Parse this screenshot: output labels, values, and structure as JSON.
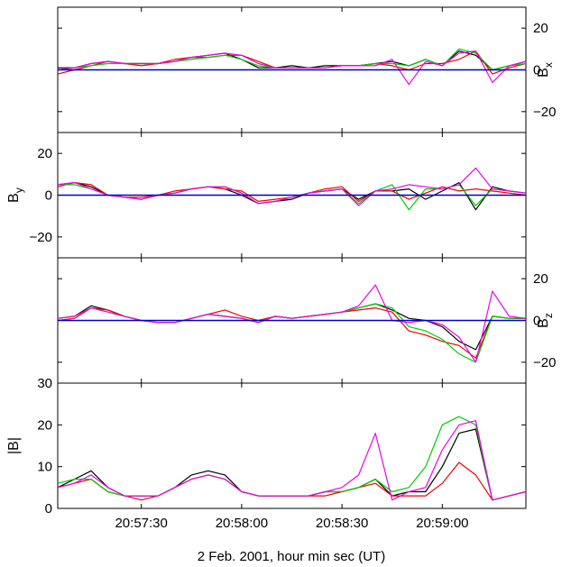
{
  "figure": {
    "xlabel": "2 Feb. 2001, hour min sec (UT)"
  },
  "chart_data": [
    {
      "type": "line",
      "panel": "Bx",
      "ylabel": "B",
      "ylabel_sub": "x",
      "ylabel_side": "right",
      "ylim": [
        -30,
        30
      ],
      "yticks": [
        -20,
        0,
        20
      ],
      "ytick_labels": [
        "−20",
        "0",
        "20"
      ],
      "reference_line": {
        "y": 0,
        "color": "#0000cc"
      },
      "series_colors": [
        "#000000",
        "#ee0000",
        "#00cc00",
        "#ee00ee"
      ],
      "x": [
        0,
        5,
        10,
        15,
        20,
        25,
        30,
        35,
        40,
        45,
        50,
        55,
        60,
        65,
        70,
        75,
        80,
        85,
        90,
        95,
        100,
        105,
        110,
        115,
        120,
        125,
        130,
        135,
        140
      ],
      "series": [
        {
          "values": [
            1,
            1,
            3,
            4,
            3,
            3,
            3,
            4,
            6,
            7,
            8,
            5,
            1,
            1,
            2,
            1,
            2,
            2,
            2,
            3,
            4,
            2,
            5,
            2,
            9,
            7,
            0,
            2,
            4
          ]
        },
        {
          "values": [
            -2,
            0,
            2,
            4,
            3,
            2,
            3,
            5,
            6,
            6,
            7,
            7,
            4,
            1,
            1,
            1,
            1,
            2,
            2,
            3,
            2,
            0,
            3,
            3,
            5,
            9,
            -2,
            1,
            3
          ]
        },
        {
          "values": [
            0,
            1,
            2,
            3,
            3,
            3,
            3,
            4,
            5,
            6,
            7,
            5,
            2,
            1,
            1,
            1,
            1,
            2,
            2,
            3,
            3,
            2,
            5,
            2,
            10,
            8,
            0,
            2,
            3
          ]
        },
        {
          "values": [
            0,
            1,
            3,
            4,
            3,
            3,
            3,
            4,
            6,
            7,
            8,
            7,
            3,
            1,
            1,
            1,
            1,
            2,
            2,
            2,
            5,
            -7,
            4,
            2,
            8,
            9,
            -6,
            2,
            4
          ]
        }
      ]
    },
    {
      "type": "line",
      "panel": "By",
      "ylabel": "B",
      "ylabel_sub": "y",
      "ylabel_side": "left",
      "ylim": [
        -30,
        30
      ],
      "yticks": [
        -20,
        0,
        20
      ],
      "ytick_labels": [
        "−20",
        "0",
        "20"
      ],
      "reference_line": {
        "y": 0,
        "color": "#0000cc"
      },
      "series_colors": [
        "#000000",
        "#ee0000",
        "#00cc00",
        "#ee00ee"
      ],
      "x": [
        0,
        5,
        10,
        15,
        20,
        25,
        30,
        35,
        40,
        45,
        50,
        55,
        60,
        65,
        70,
        75,
        80,
        85,
        90,
        95,
        100,
        105,
        110,
        115,
        120,
        125,
        130,
        135,
        140
      ],
      "series": [
        {
          "values": [
            5,
            6,
            4,
            0,
            -1,
            -2,
            0,
            1,
            3,
            4,
            3,
            0,
            -4,
            -3,
            -2,
            1,
            2,
            3,
            -2,
            2,
            2,
            3,
            -2,
            2,
            6,
            -7,
            4,
            2,
            1
          ]
        },
        {
          "values": [
            4,
            6,
            5,
            0,
            -1,
            -1,
            0,
            2,
            3,
            4,
            3,
            2,
            -3,
            -2,
            -1,
            1,
            3,
            4,
            -3,
            2,
            2,
            -2,
            1,
            4,
            2,
            3,
            2,
            1,
            0
          ]
        },
        {
          "values": [
            5,
            5,
            3,
            0,
            -1,
            -2,
            0,
            1,
            3,
            4,
            4,
            1,
            -4,
            -3,
            -1,
            1,
            2,
            3,
            -4,
            2,
            5,
            -7,
            3,
            3,
            5,
            -5,
            3,
            2,
            1
          ]
        },
        {
          "values": [
            5,
            6,
            3,
            0,
            -1,
            -2,
            0,
            1,
            3,
            4,
            4,
            1,
            -4,
            -3,
            -1,
            1,
            2,
            3,
            -5,
            2,
            3,
            5,
            4,
            3,
            5,
            13,
            3,
            2,
            1
          ]
        }
      ]
    },
    {
      "type": "line",
      "panel": "Bz",
      "ylabel": "B",
      "ylabel_sub": "z",
      "ylabel_side": "right",
      "ylim": [
        -30,
        30
      ],
      "yticks": [
        -20,
        0,
        20
      ],
      "ytick_labels": [
        "−20",
        "0",
        "20"
      ],
      "reference_line": {
        "y": 0,
        "color": "#0000cc"
      },
      "series_colors": [
        "#000000",
        "#ee0000",
        "#00cc00",
        "#ee00ee"
      ],
      "x": [
        0,
        5,
        10,
        15,
        20,
        25,
        30,
        35,
        40,
        45,
        50,
        55,
        60,
        65,
        70,
        75,
        80,
        85,
        90,
        95,
        100,
        105,
        110,
        115,
        120,
        125,
        130,
        135,
        140
      ],
      "series": [
        {
          "values": [
            1,
            2,
            7,
            5,
            2,
            0,
            -1,
            -1,
            1,
            3,
            2,
            1,
            -1,
            2,
            1,
            2,
            3,
            4,
            6,
            8,
            5,
            1,
            0,
            -3,
            -10,
            -14,
            2,
            1,
            1
          ]
        },
        {
          "values": [
            0,
            1,
            6,
            5,
            2,
            0,
            -1,
            -1,
            1,
            3,
            5,
            2,
            0,
            2,
            1,
            2,
            3,
            4,
            5,
            6,
            4,
            -5,
            -7,
            -10,
            -12,
            -18,
            2,
            1,
            1
          ]
        },
        {
          "values": [
            1,
            2,
            6,
            4,
            2,
            0,
            -1,
            -1,
            1,
            3,
            2,
            1,
            -1,
            2,
            1,
            2,
            3,
            4,
            6,
            8,
            6,
            -3,
            -5,
            -9,
            -16,
            -20,
            2,
            1,
            1
          ]
        },
        {
          "values": [
            1,
            2,
            6,
            4,
            2,
            0,
            -1,
            -1,
            1,
            3,
            2,
            1,
            -1,
            2,
            1,
            2,
            3,
            4,
            7,
            17,
            0,
            -1,
            0,
            -2,
            -8,
            -20,
            14,
            2,
            1
          ]
        }
      ]
    },
    {
      "type": "line",
      "panel": "|B|",
      "ylabel": "|B|",
      "ylabel_side": "left",
      "ylim": [
        0,
        30
      ],
      "yticks": [
        0,
        10,
        20,
        30
      ],
      "ytick_labels": [
        "0",
        "10",
        "20",
        "30"
      ],
      "x_tick_labels": [
        "20:57:30",
        "20:58:00",
        "20:58:30",
        "20:59:00"
      ],
      "x_tick_positions": [
        25,
        55,
        85,
        115
      ],
      "series_colors": [
        "#000000",
        "#ee0000",
        "#00cc00",
        "#ee00ee"
      ],
      "x": [
        0,
        5,
        10,
        15,
        20,
        25,
        30,
        35,
        40,
        45,
        50,
        55,
        60,
        65,
        70,
        75,
        80,
        85,
        90,
        95,
        100,
        105,
        110,
        115,
        120,
        125,
        130,
        135,
        140
      ],
      "series": [
        {
          "values": [
            5,
            7,
            9,
            5,
            3,
            3,
            3,
            5,
            8,
            9,
            8,
            4,
            3,
            3,
            3,
            3,
            4,
            4,
            5,
            7,
            3,
            4,
            4,
            10,
            18,
            19,
            2,
            3,
            4
          ]
        },
        {
          "values": [
            5,
            6,
            7,
            4,
            3,
            2,
            3,
            5,
            7,
            8,
            7,
            4,
            3,
            3,
            3,
            3,
            3,
            4,
            5,
            6,
            3,
            3,
            3,
            6,
            11,
            8,
            2,
            3,
            4
          ]
        },
        {
          "values": [
            6,
            7,
            7,
            4,
            3,
            3,
            3,
            5,
            7,
            8,
            7,
            4,
            3,
            3,
            3,
            3,
            4,
            4,
            5,
            7,
            4,
            5,
            10,
            20,
            22,
            20,
            2,
            3,
            4
          ]
        },
        {
          "values": [
            5,
            6,
            8,
            5,
            3,
            3,
            3,
            5,
            7,
            8,
            7,
            4,
            3,
            3,
            3,
            3,
            4,
            5,
            8,
            18,
            2,
            4,
            5,
            14,
            20,
            21,
            2,
            3,
            4
          ]
        }
      ]
    }
  ]
}
